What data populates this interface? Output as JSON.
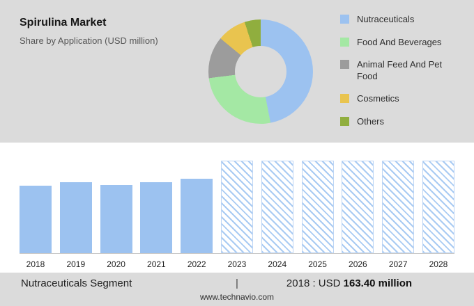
{
  "header": {
    "title": "Spirulina Market",
    "subtitle": "Share by Application (USD million)"
  },
  "chart_data": [
    {
      "type": "pie",
      "donut": true,
      "title": "Spirulina Market Share by Application (USD million)",
      "labels": [
        "Nutraceuticals",
        "Food And Beverages",
        "Animal Feed And Pet Food",
        "Cosmetics",
        "Others"
      ],
      "values": [
        47,
        26,
        13,
        9,
        5
      ],
      "colors": [
        "#9cc2f0",
        "#a4e8a4",
        "#9c9c9c",
        "#e9c44f",
        "#90ae3e"
      ],
      "legend_position": "right"
    },
    {
      "type": "bar",
      "categories": [
        "2018",
        "2019",
        "2020",
        "2021",
        "2022",
        "2023",
        "2024",
        "2025",
        "2026",
        "2027",
        "2028"
      ],
      "values": [
        163.4,
        172,
        166,
        172,
        181,
        null,
        null,
        null,
        null,
        null,
        null
      ],
      "forecast_categories": [
        "2023",
        "2024",
        "2025",
        "2026",
        "2027",
        "2028"
      ],
      "forecast_style": "hatched-full-height-placeholder",
      "ylim": [
        0,
        225
      ],
      "bar_color": "#9cc2f0",
      "grid": false,
      "xlabel": "",
      "ylabel": ""
    }
  ],
  "footer": {
    "segment_label": "Nutraceuticals Segment",
    "separator": "|",
    "stat_prefix": "2018 : USD ",
    "stat_value": "163.40 million",
    "website": "www.technavio.com"
  }
}
